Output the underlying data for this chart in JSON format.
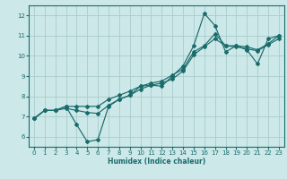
{
  "title": "",
  "xlabel": "Humidex (Indice chaleur)",
  "ylabel": "",
  "bg_color": "#cce8e8",
  "grid_color": "#aacccc",
  "line_color": "#1a6b6b",
  "xlim": [
    -0.5,
    23.5
  ],
  "ylim": [
    5.5,
    12.5
  ],
  "yticks": [
    6,
    7,
    8,
    9,
    10,
    11,
    12
  ],
  "xticks": [
    0,
    1,
    2,
    3,
    4,
    5,
    6,
    7,
    8,
    9,
    10,
    11,
    12,
    13,
    14,
    15,
    16,
    17,
    18,
    19,
    20,
    21,
    22,
    23
  ],
  "line1_x": [
    0,
    1,
    2,
    3,
    4,
    5,
    6,
    7,
    8,
    9,
    10,
    11,
    12,
    13,
    14,
    15,
    16,
    17,
    18,
    19,
    20,
    21,
    22,
    23
  ],
  "line1_y": [
    6.9,
    7.3,
    7.3,
    7.5,
    6.6,
    5.75,
    5.85,
    7.5,
    7.85,
    8.05,
    8.5,
    8.55,
    8.5,
    9.0,
    9.5,
    10.5,
    12.1,
    11.5,
    10.2,
    10.5,
    10.3,
    9.6,
    10.85,
    11.0
  ],
  "line2_x": [
    0,
    1,
    2,
    3,
    4,
    5,
    6,
    7,
    8,
    9,
    10,
    11,
    12,
    13,
    14,
    15,
    16,
    17,
    18,
    19,
    20,
    21,
    22,
    23
  ],
  "line2_y": [
    6.9,
    7.3,
    7.3,
    7.5,
    7.5,
    7.5,
    7.5,
    7.85,
    8.05,
    8.25,
    8.5,
    8.65,
    8.75,
    9.05,
    9.35,
    10.2,
    10.5,
    11.1,
    10.5,
    10.5,
    10.45,
    10.3,
    10.6,
    11.0
  ],
  "line3_x": [
    0,
    1,
    2,
    3,
    4,
    5,
    6,
    7,
    8,
    9,
    10,
    11,
    12,
    13,
    14,
    15,
    16,
    17,
    18,
    19,
    20,
    21,
    22,
    23
  ],
  "line3_y": [
    6.9,
    7.3,
    7.3,
    7.4,
    7.3,
    7.2,
    7.15,
    7.55,
    7.85,
    8.05,
    8.35,
    8.55,
    8.65,
    8.85,
    9.25,
    10.05,
    10.45,
    10.85,
    10.5,
    10.45,
    10.35,
    10.25,
    10.55,
    10.85
  ]
}
